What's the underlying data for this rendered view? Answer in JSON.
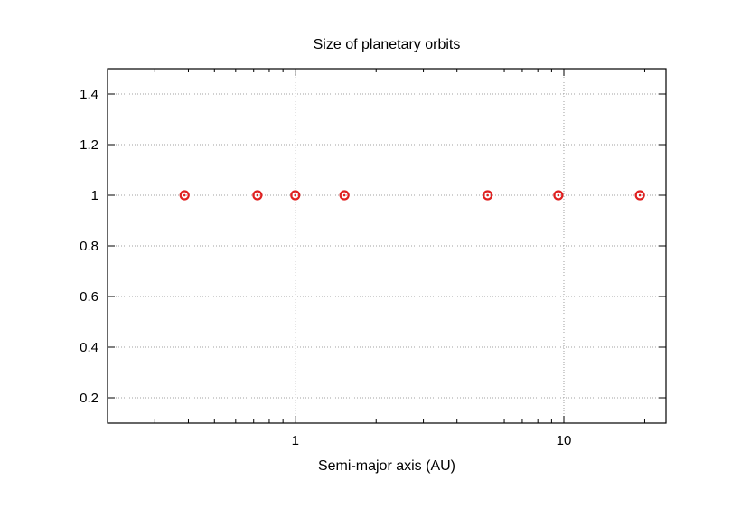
{
  "chart_data": {
    "type": "scatter",
    "title": "Size of planetary orbits",
    "xlabel": "Semi-major axis (AU)",
    "ylabel": "",
    "x_scale": "log",
    "xlim": [
      0.2,
      24
    ],
    "ylim": [
      0.1,
      1.5
    ],
    "grid": true,
    "x_ticks": [
      1,
      10
    ],
    "x_tick_labels": [
      "1",
      "10"
    ],
    "y_ticks": [
      0.2,
      0.4,
      0.6,
      0.8,
      1.0,
      1.2,
      1.4
    ],
    "y_tick_labels": [
      "0.2",
      "0.4",
      "0.6",
      "0.8",
      "1",
      "1.2",
      "1.4"
    ],
    "series": [
      {
        "marker": "circle-ring",
        "color": "#e02020",
        "points": [
          {
            "x": 0.387,
            "y": 1
          },
          {
            "x": 0.723,
            "y": 1
          },
          {
            "x": 1.0,
            "y": 1
          },
          {
            "x": 1.524,
            "y": 1
          },
          {
            "x": 5.203,
            "y": 1
          },
          {
            "x": 9.537,
            "y": 1
          },
          {
            "x": 19.19,
            "y": 1
          }
        ]
      }
    ]
  }
}
